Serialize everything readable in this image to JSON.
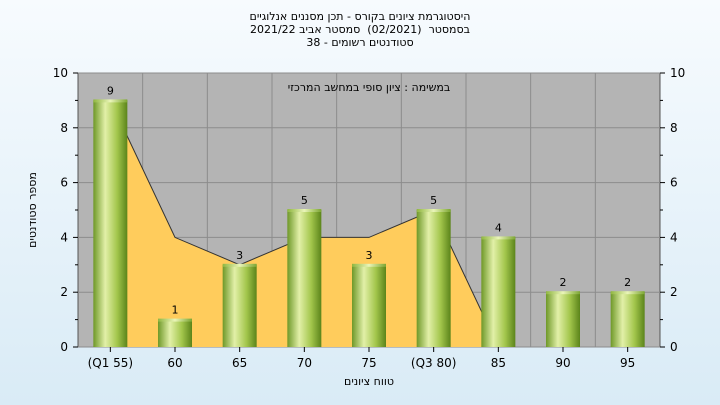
{
  "chart_data": {
    "type": "bar",
    "title": "היסטוגרמת ציונים בקורס - תכן מסננים אנלוגיים",
    "subtitle_lines": [
      "בסמסטר  (02/2021)  סמסטר אביב 2021/22",
      "סטודנטים רשומים - 38"
    ],
    "annotation": "במשימה : ציון סופי במחשב המרכזי",
    "categories": [
      "(Q1 55)",
      "60",
      "65",
      "70",
      "75",
      "(Q3 80)",
      "85",
      "90",
      "95"
    ],
    "values": [
      9,
      1,
      3,
      5,
      3,
      5,
      4,
      2,
      2
    ],
    "area_values": [
      9,
      4,
      3,
      4,
      4,
      5
    ],
    "xlabel": "טווח ציונים",
    "ylabel": "מספר סטודנטים",
    "ylim": [
      0,
      10
    ],
    "yticks": [
      0,
      2,
      4,
      6,
      8,
      10
    ],
    "grid": true,
    "colors": {
      "plot_bg": "#b4b4b4",
      "area": "#ffcc5c",
      "bar_light": "#e2f0a8",
      "bar_mid": "#a9cc52",
      "bar_dark": "#5f8a1c",
      "grid": "#8c8c8c"
    }
  }
}
